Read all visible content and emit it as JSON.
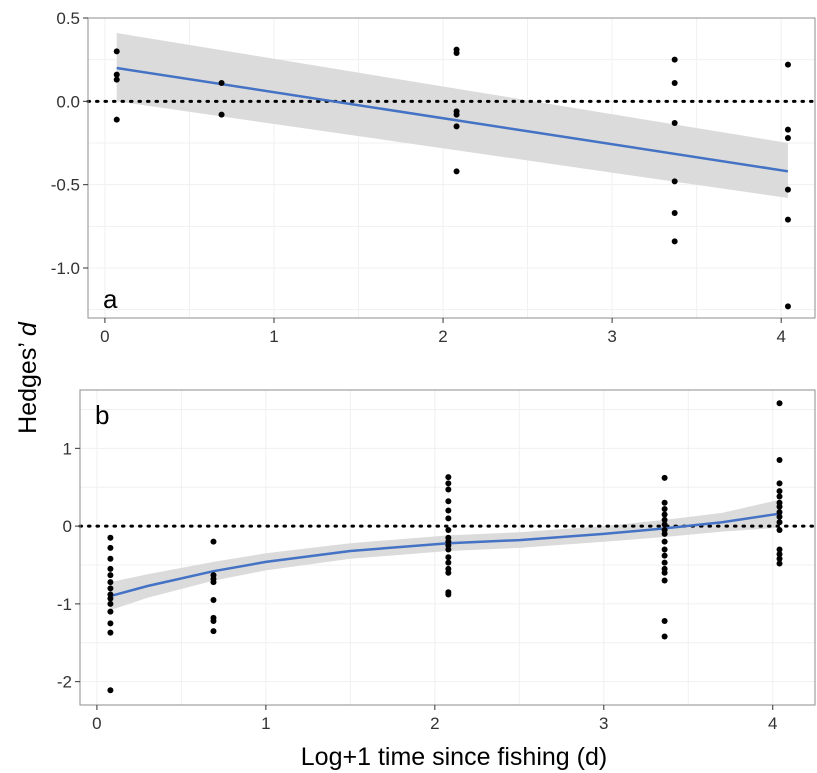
{
  "figure": {
    "ylabel_main": "Hedges’ ",
    "ylabel_italic": "d",
    "xlabel": "Log+1 time since fishing (d)"
  },
  "colors": {
    "fit_line": "#4472C4",
    "ribbon": "#D9D9D9",
    "points": "#000000",
    "reference_line": "#000000",
    "axis_frame": "#8C8C8C",
    "grid": "#F0F0F0"
  },
  "chart_data": [
    {
      "type": "scatter",
      "panel_label": "a",
      "xlim": [
        -0.1,
        4.2
      ],
      "ylim": [
        -1.3,
        0.5
      ],
      "x_ticks": [
        0,
        1,
        2,
        3,
        4
      ],
      "x_tick_labels": [
        "0",
        "1",
        "2",
        "3",
        "4"
      ],
      "y_ticks": [
        0.5,
        0.0,
        -0.5,
        -1.0
      ],
      "y_tick_labels": [
        "0.5",
        "0.0",
        "-0.5",
        "-1.0"
      ],
      "reference_line_y": 0,
      "grid": true,
      "points": [
        [
          0.07,
          0.3
        ],
        [
          0.07,
          0.16
        ],
        [
          0.07,
          0.13
        ],
        [
          0.07,
          -0.11
        ],
        [
          0.69,
          0.11
        ],
        [
          0.69,
          -0.08
        ],
        [
          2.08,
          0.31
        ],
        [
          2.08,
          0.29
        ],
        [
          2.08,
          -0.06
        ],
        [
          2.08,
          -0.08
        ],
        [
          2.08,
          -0.15
        ],
        [
          2.08,
          -0.42
        ],
        [
          3.37,
          0.25
        ],
        [
          3.37,
          0.11
        ],
        [
          3.37,
          -0.13
        ],
        [
          3.37,
          -0.48
        ],
        [
          3.37,
          -0.67
        ],
        [
          3.37,
          -0.84
        ],
        [
          4.04,
          0.22
        ],
        [
          4.04,
          -0.17
        ],
        [
          4.04,
          -0.22
        ],
        [
          4.04,
          -0.53
        ],
        [
          4.04,
          -0.71
        ],
        [
          4.04,
          -1.23
        ]
      ],
      "fit": {
        "x": [
          0.07,
          4.04
        ],
        "y": [
          0.2,
          -0.42
        ],
        "lower": [
          0.0,
          -0.58
        ],
        "upper": [
          0.41,
          -0.25
        ]
      }
    },
    {
      "type": "scatter",
      "panel_label": "b",
      "xlim": [
        -0.1,
        4.25
      ],
      "ylim": [
        -2.3,
        1.75
      ],
      "x_ticks": [
        0,
        1,
        2,
        3,
        4
      ],
      "x_tick_labels": [
        "0",
        "1",
        "2",
        "3",
        "4"
      ],
      "y_ticks": [
        1,
        0,
        -1,
        -2
      ],
      "y_tick_labels": [
        "1",
        "0",
        "-1",
        "-2"
      ],
      "reference_line_y": 0,
      "grid": true,
      "points": [
        [
          0.08,
          -0.15
        ],
        [
          0.08,
          -0.28
        ],
        [
          0.08,
          -0.42
        ],
        [
          0.08,
          -0.55
        ],
        [
          0.08,
          -0.63
        ],
        [
          0.08,
          -0.72
        ],
        [
          0.08,
          -0.8
        ],
        [
          0.08,
          -0.88
        ],
        [
          0.08,
          -0.93
        ],
        [
          0.08,
          -1.0
        ],
        [
          0.08,
          -1.1
        ],
        [
          0.08,
          -1.25
        ],
        [
          0.08,
          -1.37
        ],
        [
          0.08,
          -2.11
        ],
        [
          0.69,
          -0.2
        ],
        [
          0.69,
          -0.63
        ],
        [
          0.69,
          -0.68
        ],
        [
          0.69,
          -0.72
        ],
        [
          0.69,
          -0.95
        ],
        [
          0.69,
          -1.18
        ],
        [
          0.69,
          -1.22
        ],
        [
          0.69,
          -1.35
        ],
        [
          2.08,
          0.63
        ],
        [
          2.08,
          0.55
        ],
        [
          2.08,
          0.47
        ],
        [
          2.08,
          0.32
        ],
        [
          2.08,
          0.2
        ],
        [
          2.08,
          0.1
        ],
        [
          2.08,
          -0.05
        ],
        [
          2.08,
          -0.15
        ],
        [
          2.08,
          -0.2
        ],
        [
          2.08,
          -0.25
        ],
        [
          2.08,
          -0.3
        ],
        [
          2.08,
          -0.4
        ],
        [
          2.08,
          -0.47
        ],
        [
          2.08,
          -0.55
        ],
        [
          2.08,
          -0.6
        ],
        [
          2.08,
          -0.85
        ],
        [
          2.08,
          -0.88
        ],
        [
          3.36,
          0.62
        ],
        [
          3.36,
          0.3
        ],
        [
          3.36,
          0.22
        ],
        [
          3.36,
          0.15
        ],
        [
          3.36,
          0.08
        ],
        [
          3.36,
          0.02
        ],
        [
          3.36,
          -0.05
        ],
        [
          3.36,
          -0.1
        ],
        [
          3.36,
          -0.2
        ],
        [
          3.36,
          -0.3
        ],
        [
          3.36,
          -0.38
        ],
        [
          3.36,
          -0.47
        ],
        [
          3.36,
          -0.55
        ],
        [
          3.36,
          -0.6
        ],
        [
          3.36,
          -0.7
        ],
        [
          3.36,
          -1.22
        ],
        [
          3.36,
          -1.42
        ],
        [
          4.04,
          1.58
        ],
        [
          4.04,
          0.85
        ],
        [
          4.04,
          0.55
        ],
        [
          4.04,
          0.45
        ],
        [
          4.04,
          0.38
        ],
        [
          4.04,
          0.3
        ],
        [
          4.04,
          0.25
        ],
        [
          4.04,
          0.18
        ],
        [
          4.04,
          0.12
        ],
        [
          4.04,
          0.05
        ],
        [
          4.04,
          -0.05
        ],
        [
          4.04,
          -0.3
        ],
        [
          4.04,
          -0.36
        ],
        [
          4.04,
          -0.42
        ],
        [
          4.04,
          -0.48
        ]
      ],
      "fit": {
        "x": [
          0.08,
          0.3,
          0.69,
          1.0,
          1.5,
          2.08,
          2.5,
          3.0,
          3.36,
          3.7,
          4.04
        ],
        "y": [
          -0.9,
          -0.77,
          -0.58,
          -0.46,
          -0.32,
          -0.22,
          -0.18,
          -0.1,
          -0.03,
          0.05,
          0.16
        ],
        "lower": [
          -1.08,
          -0.92,
          -0.7,
          -0.57,
          -0.42,
          -0.32,
          -0.28,
          -0.2,
          -0.14,
          -0.07,
          -0.02
        ],
        "upper": [
          -0.72,
          -0.62,
          -0.46,
          -0.35,
          -0.22,
          -0.12,
          -0.08,
          0.0,
          0.08,
          0.17,
          0.34
        ]
      }
    }
  ]
}
